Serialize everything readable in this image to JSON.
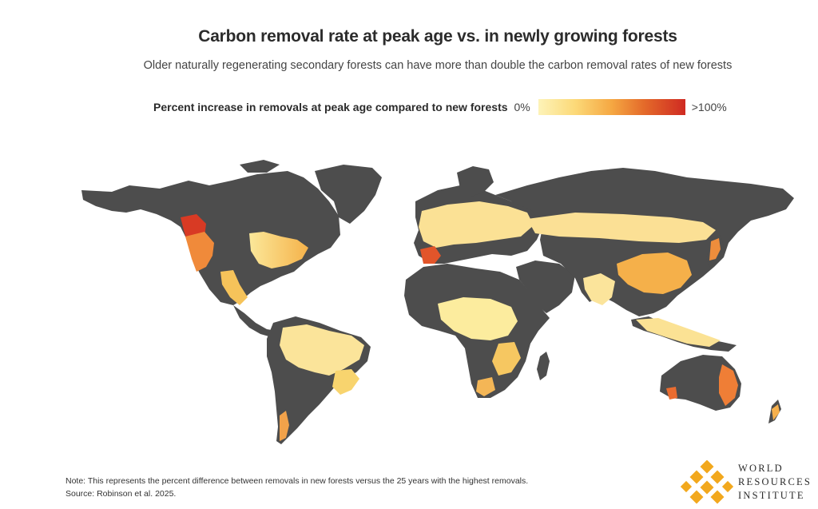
{
  "title": "Carbon removal rate at peak age vs. in newly growing forests",
  "subtitle": "Older naturally regenerating secondary forests can have more than double the carbon removal rates of new forests",
  "legend": {
    "title": "Percent increase in removals at peak age compared to new forests",
    "min_label": "0%",
    "max_label": ">100%",
    "colors": [
      "#fdf3b8",
      "#fcd978",
      "#f5a742",
      "#e46a2a",
      "#cf2a22"
    ]
  },
  "map": {
    "land_color": "#4d4d4d",
    "water_color": "#ffffff"
  },
  "note": {
    "text": "Note: This represents the percent difference between removals in new forests versus the 25 years with the highest removals.",
    "source": "Source: Robinson et al. 2025."
  },
  "logo": {
    "line1": "WORLD",
    "line2": "RESOURCES",
    "line3": "INSTITUTE",
    "color": "#f2a81d"
  }
}
